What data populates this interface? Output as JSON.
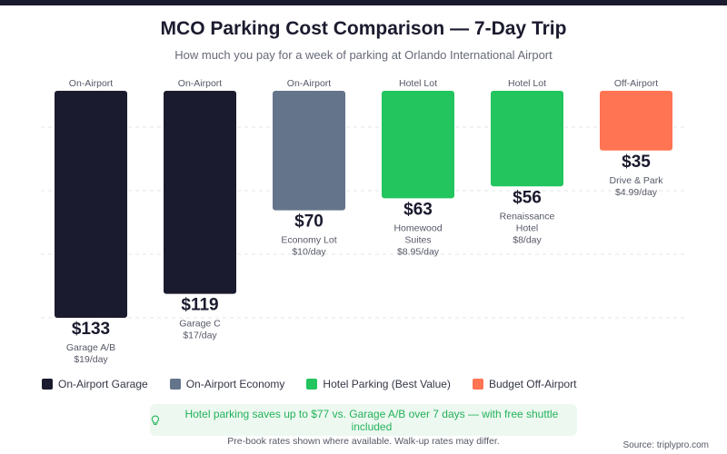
{
  "chart_data": {
    "type": "bar",
    "title": "MCO Parking Cost Comparison — 7-Day Trip",
    "subtitle": "How much you pay for a week of parking at Orlando International Airport",
    "ylim": [
      0,
      133
    ],
    "grid": true,
    "categories": [
      "Garage A/B",
      "Garage C",
      "Economy Lot",
      "Homewood Suites",
      "Renaissance Hotel",
      "Drive & Park"
    ],
    "bars": [
      {
        "tag": "On-Airport",
        "value": 133,
        "value_label": "$133",
        "name_lines": [
          "Garage A/B"
        ],
        "rate": "$19/day",
        "group": 0
      },
      {
        "tag": "On-Airport",
        "value": 119,
        "value_label": "$119",
        "name_lines": [
          "Garage C"
        ],
        "rate": "$17/day",
        "group": 0
      },
      {
        "tag": "On-Airport",
        "value": 70,
        "value_label": "$70",
        "name_lines": [
          "Economy Lot"
        ],
        "rate": "$10/day",
        "group": 1
      },
      {
        "tag": "Hotel Lot",
        "value": 63,
        "value_label": "$63",
        "name_lines": [
          "Homewood",
          "Suites"
        ],
        "rate": "$8.95/day",
        "group": 2
      },
      {
        "tag": "Hotel Lot",
        "value": 56,
        "value_label": "$56",
        "name_lines": [
          "Renaissance",
          "Hotel"
        ],
        "rate": "$8/day",
        "group": 2
      },
      {
        "tag": "Off-Airport",
        "value": 35,
        "value_label": "$35",
        "name_lines": [
          "Drive & Park"
        ],
        "rate": "$4.99/day",
        "group": 3
      }
    ],
    "legend": [
      {
        "label": "On-Airport Garage",
        "color": "#1b1b2f"
      },
      {
        "label": "On-Airport Economy",
        "color": "#64748b"
      },
      {
        "label": "Hotel Parking (Best Value)",
        "color": "#22c55e"
      },
      {
        "label": "Budget Off-Airport",
        "color": "#ff7452"
      }
    ],
    "legend_position": "bottom-left"
  },
  "callout": {
    "icon": "lightbulb-icon",
    "line1": "Hotel parking saves up to $77 vs. Garage A/B over 7 days — with free shuttle included",
    "line2": "Pre-book rates shown where available. Walk-up rates may differ."
  },
  "source": "Source: triplypro.com",
  "colors": {
    "accent": "#22b25a",
    "callout_bg": "#edf8f0",
    "top_bar": "#1b1b2f"
  }
}
